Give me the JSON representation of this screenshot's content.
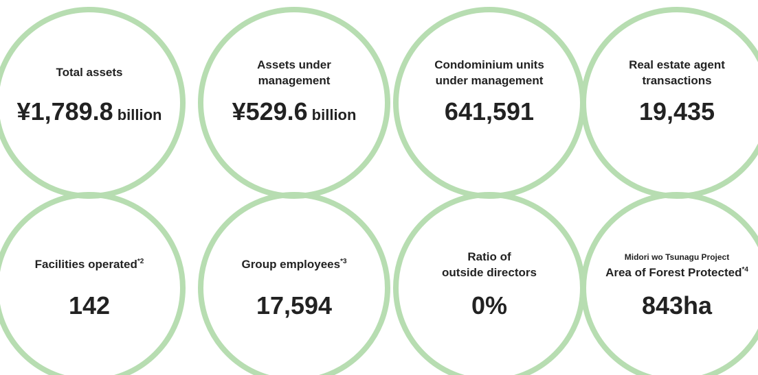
{
  "items": [
    {
      "label": [
        "Total assets"
      ],
      "value": "¥1,789.8",
      "unit": "billion"
    },
    {
      "label": [
        "Assets under",
        "management"
      ],
      "value": "¥529.6",
      "unit": "billion"
    },
    {
      "label": [
        "Condominium units",
        "under management"
      ],
      "value": "641,591"
    },
    {
      "label": [
        "Real estate agent",
        "transactions"
      ],
      "value": "19,435"
    },
    {
      "label": [
        "Facilities operated"
      ],
      "note": "*2",
      "value": "142"
    },
    {
      "label": [
        "Group employees"
      ],
      "note": "*3",
      "value": "17,594"
    },
    {
      "label": [
        "Ratio of",
        "outside directors"
      ],
      "value": "0%"
    },
    {
      "pre": "Midori wo Tsunagu Project",
      "label": [
        "Area of Forest Protected"
      ],
      "note": "*4",
      "value": "843ha"
    }
  ]
}
